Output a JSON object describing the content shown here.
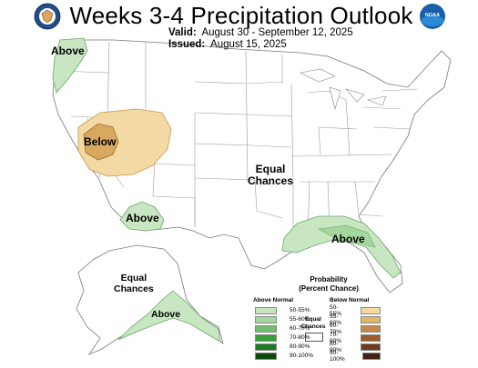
{
  "header": {
    "title": "Weeks 3-4 Precipitation Outlook",
    "valid_label": "Valid:",
    "valid_value": "August 30 - September 12, 2025",
    "issued_label": "Issued:",
    "issued_value": "August 15, 2025"
  },
  "logos": {
    "left_icon": "commerce-seal-icon",
    "right_icon": "noaa-logo-icon",
    "right_text": "NOAA"
  },
  "map_labels": {
    "pacific_nw": "Above",
    "great_basin": "Below",
    "southwest": "Above",
    "central": "Equal\nChances",
    "gulf_coast": "Above",
    "alaska_interior": "Equal\nChances",
    "alaska_south": "Above"
  },
  "legend": {
    "title": "Probability\n(Percent Chance)",
    "above_heading": "Above Normal",
    "below_heading": "Below Normal",
    "equal_label": "Equal\nChances",
    "above_rows": [
      {
        "label": "50-55%",
        "color": "#c7e6c1"
      },
      {
        "label": "55-60%",
        "color": "#a6d6a0"
      },
      {
        "label": "60-70%",
        "color": "#6fc16c"
      },
      {
        "label": "70-80%",
        "color": "#35a035"
      },
      {
        "label": "80-90%",
        "color": "#1f7a1f"
      },
      {
        "label": "90-100%",
        "color": "#0b4a0b"
      }
    ],
    "below_rows": [
      {
        "label": "50-55%",
        "color": "#f6d9a1"
      },
      {
        "label": "55-60%",
        "color": "#e2b56b"
      },
      {
        "label": "60-70%",
        "color": "#c9894b"
      },
      {
        "label": "70-80%",
        "color": "#9e5b2c"
      },
      {
        "label": "80-90%",
        "color": "#6f3b1e"
      },
      {
        "label": "90-100%",
        "color": "#3f2212"
      }
    ]
  },
  "colors": {
    "above_light": "#c7e6c1",
    "above_mid": "#a6d6a0",
    "below_light": "#f3d9a4",
    "below_mid": "#d9a860",
    "state_lines": "#8a8a8a"
  }
}
